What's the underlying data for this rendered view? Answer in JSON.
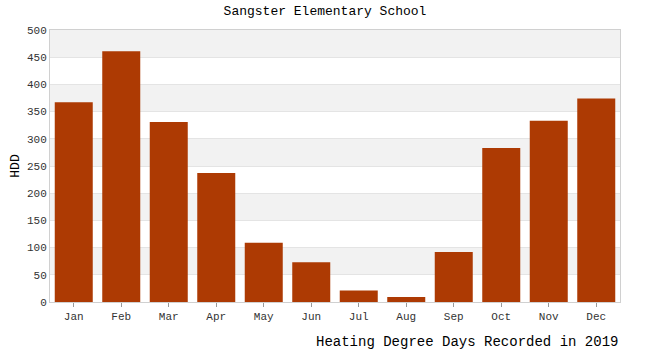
{
  "chart_data": {
    "type": "bar",
    "title": "Sangster Elementary School",
    "xlabel": "Heating Degree Days Recorded in 2019",
    "ylabel": "HDD",
    "categories": [
      "Jan",
      "Feb",
      "Mar",
      "Apr",
      "May",
      "Jun",
      "Jul",
      "Aug",
      "Sep",
      "Oct",
      "Nov",
      "Dec"
    ],
    "values": [
      367,
      461,
      331,
      237,
      109,
      73,
      21,
      9,
      92,
      283,
      333,
      374
    ],
    "color": "#ad3a03",
    "ylim": [
      0,
      500
    ],
    "yticks": [
      0,
      50,
      100,
      150,
      200,
      250,
      300,
      350,
      400,
      450,
      500
    ],
    "grid": true
  }
}
